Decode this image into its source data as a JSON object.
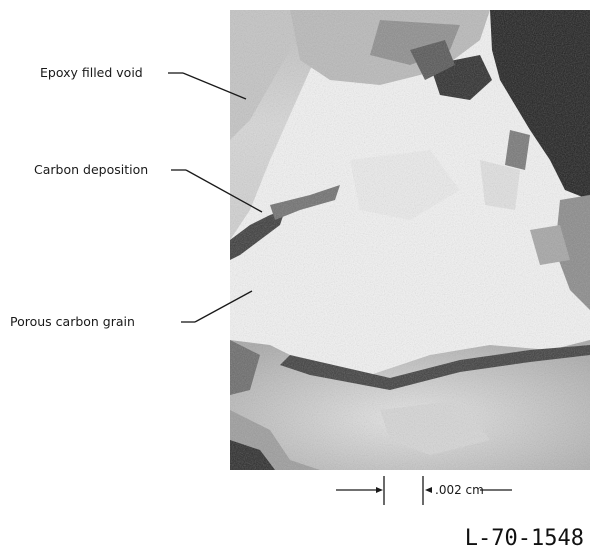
{
  "labels": {
    "epoxy": "Epoxy filled void",
    "carbon_deposition": "Carbon deposition",
    "porous_grain": "Porous carbon grain"
  },
  "scale_bar": {
    "text": ".002 cm"
  },
  "figure_id": "L-70-1548",
  "colors": {
    "ink": "#1a1a1a",
    "photo_dark": "#1e1e1e",
    "photo_mid": "#9a9a9a",
    "photo_light": "#f2f2f2"
  }
}
